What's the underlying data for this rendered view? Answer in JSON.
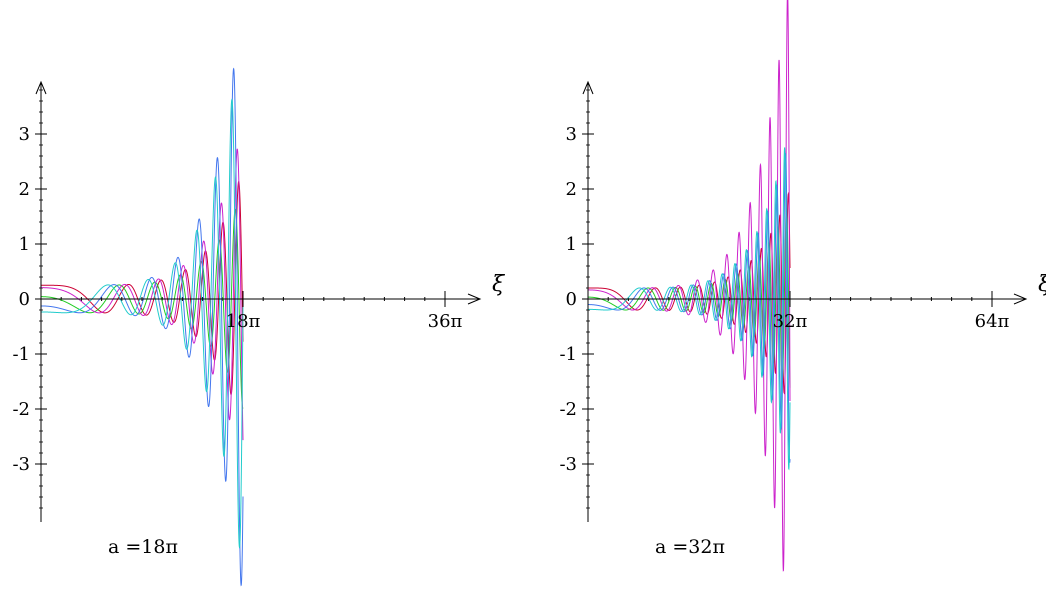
{
  "chart_data": [
    {
      "type": "line",
      "xlabel": "ξ",
      "ylabel": "",
      "xlim_over_pi": [
        0,
        36
      ],
      "ylim": [
        -4,
        4
      ],
      "x_ticks": [
        {
          "value_over_pi": 18,
          "label": "18π"
        },
        {
          "value_over_pi": 36,
          "label": "36π"
        }
      ],
      "y_ticks": [
        {
          "value": 3,
          "label": "3"
        },
        {
          "value": 2,
          "label": "2"
        },
        {
          "value": 1,
          "label": "1"
        },
        {
          "value": 0,
          "label": "0"
        },
        {
          "value": -1,
          "label": "-1"
        },
        {
          "value": -2,
          "label": "-2"
        },
        {
          "value": -3,
          "label": "-3"
        }
      ],
      "annotation": "a =18π",
      "a_over_pi": 18,
      "series": [
        {
          "color": "#cc0033",
          "start": 0.25,
          "amp_end": 2.4,
          "phase": 0,
          "freq_exp": 1.3
        },
        {
          "color": "#22cc22",
          "start": 0.25,
          "amp_end": 2.0,
          "phase": 1.4,
          "freq_exp": 1.3
        },
        {
          "color": "#cc22cc",
          "start": 0.25,
          "amp_end": 3.2,
          "phase": 0.6,
          "freq_exp": 1.3
        },
        {
          "color": "#4477ee",
          "start": 0.25,
          "amp_end": 5.5,
          "phase": 2.1,
          "freq_exp": 1.3
        },
        {
          "color": "#22cccc",
          "start": 0.25,
          "amp_end": 5.0,
          "phase": 2.8,
          "freq_exp": 1.3
        }
      ]
    },
    {
      "type": "line",
      "xlabel": "ξ",
      "ylabel": "",
      "xlim_over_pi": [
        0,
        64
      ],
      "ylim": [
        -4,
        4
      ],
      "x_ticks": [
        {
          "value_over_pi": 32,
          "label": "32π"
        },
        {
          "value_over_pi": 64,
          "label": "64π"
        }
      ],
      "y_ticks": [
        {
          "value": 3,
          "label": "3"
        },
        {
          "value": 2,
          "label": "2"
        },
        {
          "value": 1,
          "label": "1"
        },
        {
          "value": 0,
          "label": "0"
        },
        {
          "value": -1,
          "label": "-1"
        },
        {
          "value": -2,
          "label": "-2"
        },
        {
          "value": -3,
          "label": "-3"
        }
      ],
      "annotation": "a =32π",
      "a_over_pi": 32,
      "series": [
        {
          "color": "#cc0033",
          "start": 0.2,
          "amp_end": 2.0,
          "phase": 0,
          "freq_exp": 1.3
        },
        {
          "color": "#22cc22",
          "start": 0.2,
          "amp_end": 1.8,
          "phase": 1.4,
          "freq_exp": 1.3
        },
        {
          "color": "#cc22cc",
          "start": 0.2,
          "amp_end": 6.0,
          "phase": 0.6,
          "freq_exp": 1.3
        },
        {
          "color": "#4477ee",
          "start": 0.2,
          "amp_end": 3.0,
          "phase": 2.1,
          "freq_exp": 1.3
        },
        {
          "color": "#22cccc",
          "start": 0.2,
          "amp_end": 3.2,
          "phase": 2.8,
          "freq_exp": 1.3
        }
      ]
    }
  ]
}
